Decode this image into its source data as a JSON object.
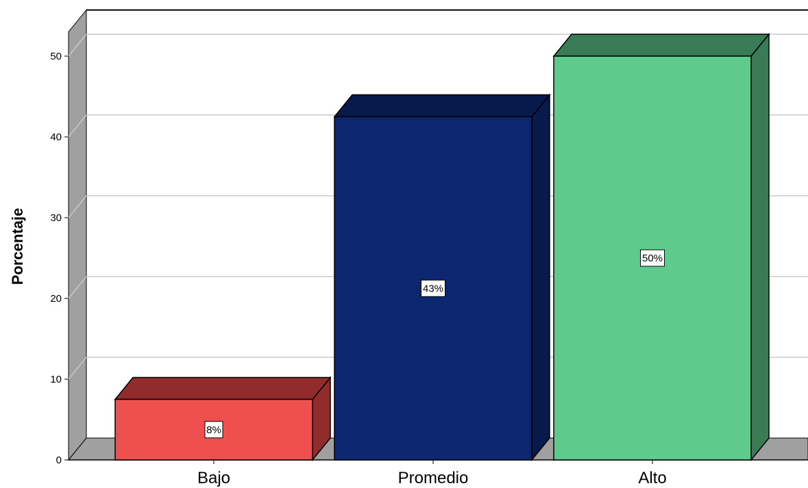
{
  "chart_data": {
    "type": "bar",
    "style": "3d",
    "title": "",
    "xlabel": "",
    "ylabel": "Porcentaje",
    "ylim": [
      0,
      53
    ],
    "yticks": [
      0,
      10,
      20,
      30,
      40,
      50
    ],
    "grid": true,
    "categories": [
      "Bajo",
      "Promedio",
      "Alto"
    ],
    "values": [
      7.5,
      42.5,
      50
    ],
    "data_labels": [
      "8%",
      "43%",
      "50%"
    ],
    "colors": [
      {
        "front": "#ee4f4f",
        "top": "#922b2b",
        "side": "#922b2b"
      },
      {
        "front": "#0c2670",
        "top": "#08194b",
        "side": "#08194b"
      },
      {
        "front": "#5ecb8c",
        "top": "#387b54",
        "side": "#387b54"
      }
    ]
  }
}
